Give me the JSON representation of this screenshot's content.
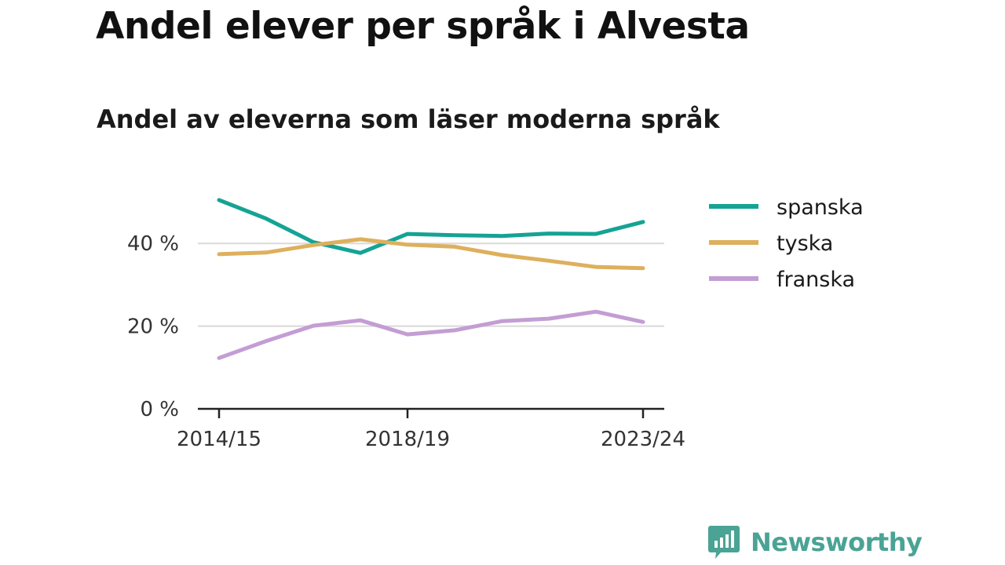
{
  "title": "Andel elever per språk i Alvesta",
  "subtitle": "Andel av eleverna som läser moderna språk",
  "brand": {
    "name": "Newsworthy",
    "color": "#4aa394",
    "icon": "bar-chart-speech-bubble-icon"
  },
  "chart_data": {
    "type": "line",
    "x": [
      "2014/15",
      "2015/16",
      "2016/17",
      "2017/18",
      "2018/19",
      "2019/20",
      "2020/21",
      "2021/22",
      "2022/23",
      "2023/24"
    ],
    "x_tick_labels": [
      "2014/15",
      "2018/19",
      "2023/24"
    ],
    "y_tick_labels": [
      "0 %",
      "20 %",
      "40 %"
    ],
    "y_ticks": [
      0,
      20,
      40
    ],
    "ylim": [
      0,
      52
    ],
    "grid": true,
    "legend_position": "right",
    "series": [
      {
        "name": "spanska",
        "color": "#14a394",
        "values": [
          50.5,
          46,
          40.3,
          37.7,
          42.3,
          42,
          41.8,
          42.4,
          42.3,
          45.2
        ]
      },
      {
        "name": "tyska",
        "color": "#ddb05d",
        "values": [
          37.4,
          37.8,
          39.6,
          41,
          39.7,
          39.2,
          37.2,
          35.8,
          34.3,
          34
        ]
      },
      {
        "name": "franska",
        "color": "#c39dd4",
        "values": [
          12.3,
          16.4,
          20.1,
          21.4,
          18,
          19,
          21.2,
          21.8,
          23.5,
          21
        ]
      }
    ]
  }
}
